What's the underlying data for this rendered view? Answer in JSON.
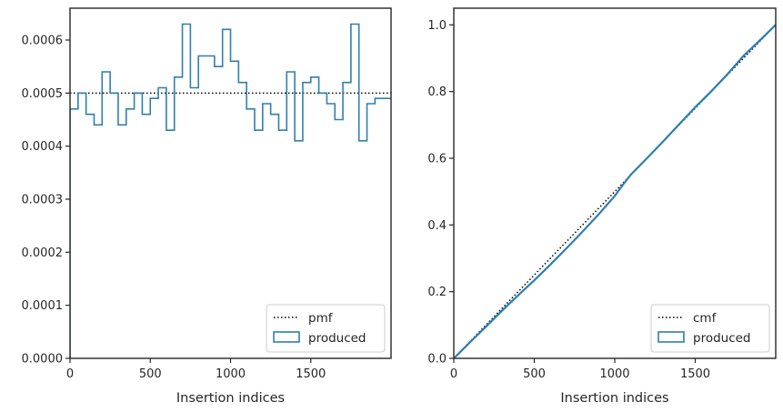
{
  "colors": {
    "produced": "#2f7fb0",
    "reference": "#000000",
    "axes": "#262626"
  },
  "chart_data": [
    {
      "type": "step",
      "title": "",
      "xlabel": "Insertion indices",
      "ylabel": "",
      "xlim": [
        0,
        2000
      ],
      "ylim": [
        0,
        0.00066
      ],
      "xticks": [
        0,
        500,
        1000,
        1500
      ],
      "xtick_labels": [
        "0",
        "500",
        "1000",
        "1500"
      ],
      "yticks": [
        0,
        0.0001,
        0.0002,
        0.0003,
        0.0004,
        0.0005,
        0.0006
      ],
      "ytick_labels": [
        "0.0000",
        "0.0001",
        "0.0002",
        "0.0003",
        "0.0004",
        "0.0005",
        "0.0006"
      ],
      "legend_position": "lower right",
      "grid": false,
      "series": [
        {
          "name": "pmf",
          "style": "dotted",
          "x": [
            0,
            2000
          ],
          "y": [
            0.0005,
            0.0005
          ]
        },
        {
          "name": "produced",
          "style": "histogram-step",
          "bin_width": 50,
          "bin_start": 0,
          "values": [
            0.00047,
            0.0005,
            0.00046,
            0.00044,
            0.00054,
            0.0005,
            0.00044,
            0.00047,
            0.0005,
            0.00046,
            0.00049,
            0.00051,
            0.00043,
            0.00053,
            0.00063,
            0.00051,
            0.00057,
            0.00057,
            0.00055,
            0.00062,
            0.00056,
            0.00052,
            0.00047,
            0.00043,
            0.00048,
            0.00046,
            0.00043,
            0.00054,
            0.00041,
            0.00052,
            0.00053,
            0.0005,
            0.00048,
            0.00045,
            0.00052,
            0.00063,
            0.00041,
            0.00048,
            0.00049,
            0.00049
          ]
        }
      ]
    },
    {
      "type": "line",
      "title": "",
      "xlabel": "Insertion indices",
      "ylabel": "",
      "xlim": [
        0,
        2000
      ],
      "ylim": [
        0,
        1.05
      ],
      "xticks": [
        0,
        500,
        1000,
        1500
      ],
      "xtick_labels": [
        "0",
        "500",
        "1000",
        "1500"
      ],
      "yticks": [
        0,
        0.2,
        0.4,
        0.6,
        0.8,
        1.0
      ],
      "ytick_labels": [
        "0.0",
        "0.2",
        "0.4",
        "0.6",
        "0.8",
        "1.0"
      ],
      "legend_position": "lower right",
      "grid": false,
      "series": [
        {
          "name": "cmf",
          "style": "dotted",
          "x": [
            0,
            2000
          ],
          "y": [
            0,
            1.0
          ]
        },
        {
          "name": "produced",
          "style": "solid",
          "x": [
            0,
            100,
            200,
            300,
            400,
            500,
            600,
            700,
            800,
            900,
            1000,
            1050,
            1100,
            1200,
            1300,
            1400,
            1500,
            1600,
            1700,
            1800,
            1900,
            2000
          ],
          "y": [
            0,
            0.048,
            0.095,
            0.143,
            0.189,
            0.234,
            0.281,
            0.33,
            0.38,
            0.432,
            0.487,
            0.52,
            0.551,
            0.6,
            0.65,
            0.702,
            0.753,
            0.801,
            0.852,
            0.907,
            0.953,
            1.0
          ]
        }
      ]
    }
  ]
}
